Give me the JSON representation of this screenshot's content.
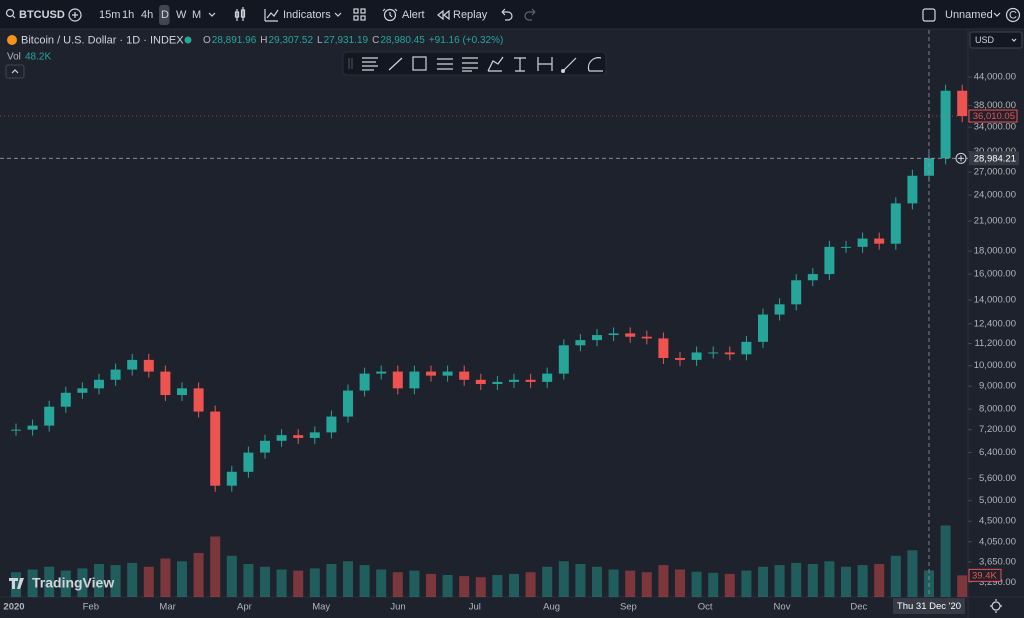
{
  "toolbar": {
    "symbol": "BTCUSD",
    "intervals": [
      "15m",
      "1h",
      "4h",
      "D",
      "W",
      "M"
    ],
    "active_interval": "D",
    "indicators": "Indicators",
    "alert": "Alert",
    "replay": "Replay",
    "layout": "Unnamed",
    "account": "C"
  },
  "legend": {
    "title": "Bitcoin / U.S. Dollar · 1D · INDEX",
    "ohlc": [
      {
        "label": "O",
        "value": "28,891.96"
      },
      {
        "label": "H",
        "value": "29,307.52"
      },
      {
        "label": "L",
        "value": "27,931.19"
      },
      {
        "label": "C",
        "value": "28,980.45"
      }
    ],
    "change": "+91.16 (+0.32%)",
    "volume_label": "Vol",
    "volume_value": "48.2K"
  },
  "currency": "USD",
  "branding": "TradingView",
  "chart_data": {
    "type": "candlestick",
    "closes": [
      7200,
      7350,
      8100,
      8700,
      8900,
      9300,
      9800,
      10300,
      9700,
      8600,
      8900,
      7900,
      5400,
      5800,
      6400,
      6800,
      7000,
      6900,
      7100,
      7700,
      8800,
      9600,
      9700,
      8900,
      9700,
      9500,
      9700,
      9300,
      9100,
      9200,
      9300,
      9200,
      9600,
      11100,
      11400,
      11700,
      11800,
      11600,
      11500,
      10400,
      10300,
      10700,
      10700,
      10600,
      11300,
      13000,
      13700,
      15500,
      16000,
      18400,
      18400,
      19200,
      18700,
      23000,
      26500,
      28980.45,
      41000,
      36010.05
    ],
    "volumes": [
      45,
      50,
      55,
      48,
      52,
      60,
      58,
      62,
      55,
      70,
      65,
      80,
      110,
      75,
      60,
      55,
      50,
      48,
      52,
      60,
      65,
      58,
      50,
      45,
      48,
      42,
      40,
      38,
      36,
      40,
      42,
      45,
      55,
      65,
      60,
      55,
      50,
      48,
      45,
      58,
      50,
      46,
      44,
      42,
      48,
      55,
      58,
      62,
      60,
      65,
      55,
      58,
      60,
      75,
      85,
      48.2,
      130,
      39.4
    ],
    "volume_value_labels": {
      "57": "39.4K"
    },
    "ylim": [
      3050,
      56000
    ],
    "log_scale": true,
    "yticks": [
      {
        "value": 44000,
        "label": "44,000.00"
      },
      {
        "value": 38000,
        "label": "38,000.00"
      },
      {
        "value": 34000,
        "label": "34,000.00"
      },
      {
        "value": 30000,
        "label": "30,000.00"
      },
      {
        "value": 27000,
        "label": "27,000.00"
      },
      {
        "value": 24000,
        "label": "24,000.00"
      },
      {
        "value": 21000,
        "label": "21,000.00"
      },
      {
        "value": 18000,
        "label": "18,000.00"
      },
      {
        "value": 16000,
        "label": "16,000.00"
      },
      {
        "value": 14000,
        "label": "14,000.00"
      },
      {
        "value": 12400,
        "label": "12,400.00"
      },
      {
        "value": 11200,
        "label": "11,200.00"
      },
      {
        "value": 10000,
        "label": "10,000.00"
      },
      {
        "value": 9000,
        "label": "9,000.00"
      },
      {
        "value": 8000,
        "label": "8,000.00"
      },
      {
        "value": 7200,
        "label": "7,200.00"
      },
      {
        "value": 6400,
        "label": "6,400.00"
      },
      {
        "value": 5600,
        "label": "5,600.00"
      },
      {
        "value": 5000,
        "label": "5,000.00"
      },
      {
        "value": 4500,
        "label": "4,500.00"
      },
      {
        "value": 4050,
        "label": "4,050.00"
      },
      {
        "value": 3650,
        "label": "3,650.00"
      },
      {
        "value": 3290,
        "label": "3,290.00"
      }
    ],
    "time_labels": [
      "2020",
      "Feb",
      "Mar",
      "Apr",
      "May",
      "Jun",
      "Jul",
      "Aug",
      "Sep",
      "Oct",
      "Nov",
      "Dec"
    ],
    "last_price": {
      "value": 36010.05,
      "label": "36,010.05"
    },
    "crosshair": {
      "value": 28984.21,
      "label": "28,984.21",
      "date": "Thu 31 Dec '20"
    },
    "up_color": "#26a69a",
    "down_color": "#ef5350"
  }
}
